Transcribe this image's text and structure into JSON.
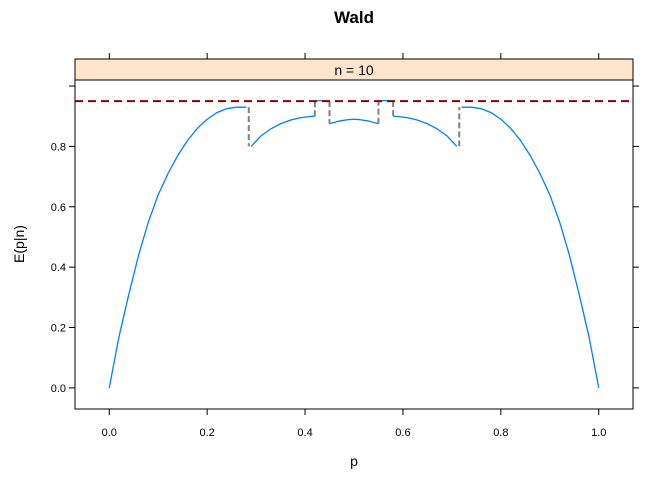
{
  "chart_data": {
    "type": "line",
    "title": "Wald",
    "xlabel": "p",
    "ylabel": "E(p|n)",
    "strip_label": "n = 10",
    "xlim": [
      -0.07,
      1.07
    ],
    "ylim": [
      -0.07,
      1.02
    ],
    "x_ticks": [
      0.0,
      0.2,
      0.4,
      0.6,
      0.8,
      1.0
    ],
    "x_tick_labels": [
      "0.0",
      "0.2",
      "0.4",
      "0.6",
      "0.8",
      "1.0"
    ],
    "y_ticks": [
      0.0,
      0.2,
      0.4,
      0.6,
      0.8
    ],
    "y_tick_labels": [
      "0.0",
      "0.2",
      "0.4",
      "0.6",
      "0.8"
    ],
    "strip_color": "#ffe5cc",
    "curve_color": "#0080ff",
    "jump_color": "#808080",
    "reference_line": {
      "y": 0.95,
      "color": "#8b0000",
      "style": "dashed"
    },
    "series": [
      {
        "segment": 1,
        "x": [
          0.0,
          0.02,
          0.04,
          0.06,
          0.08,
          0.1,
          0.12,
          0.14,
          0.16,
          0.18,
          0.2,
          0.22,
          0.24,
          0.26,
          0.28
        ],
        "y": [
          0.0,
          0.17,
          0.31,
          0.44,
          0.55,
          0.64,
          0.71,
          0.77,
          0.82,
          0.86,
          0.89,
          0.912,
          0.925,
          0.93,
          0.93
        ]
      },
      {
        "segment": 2,
        "x": [
          0.29,
          0.31,
          0.33,
          0.35,
          0.37,
          0.39,
          0.41,
          0.42
        ],
        "y": [
          0.8,
          0.835,
          0.858,
          0.875,
          0.887,
          0.895,
          0.899,
          0.9
        ]
      },
      {
        "segment": 3,
        "x": [
          0.42,
          0.435,
          0.45
        ],
        "y": [
          0.95,
          0.952,
          0.95
        ]
      },
      {
        "segment": 4,
        "x": [
          0.45,
          0.47,
          0.49,
          0.5,
          0.51,
          0.53,
          0.55
        ],
        "y": [
          0.875,
          0.884,
          0.889,
          0.89,
          0.889,
          0.884,
          0.875
        ]
      },
      {
        "segment": 5,
        "x": [
          0.55,
          0.565,
          0.58
        ],
        "y": [
          0.95,
          0.952,
          0.95
        ]
      },
      {
        "segment": 6,
        "x": [
          0.58,
          0.59,
          0.61,
          0.63,
          0.65,
          0.67,
          0.69,
          0.71
        ],
        "y": [
          0.9,
          0.899,
          0.895,
          0.887,
          0.875,
          0.858,
          0.835,
          0.8
        ]
      },
      {
        "segment": 7,
        "x": [
          0.72,
          0.74,
          0.76,
          0.78,
          0.8,
          0.82,
          0.84,
          0.86,
          0.88,
          0.9,
          0.92,
          0.94,
          0.96,
          0.98,
          1.0
        ],
        "y": [
          0.93,
          0.93,
          0.925,
          0.912,
          0.89,
          0.86,
          0.82,
          0.77,
          0.71,
          0.64,
          0.55,
          0.44,
          0.31,
          0.17,
          0.0
        ]
      }
    ],
    "jumps": [
      {
        "x": 0.285,
        "from": 0.93,
        "to": 0.8
      },
      {
        "x": 0.42,
        "from": 0.9,
        "to": 0.95
      },
      {
        "x": 0.45,
        "from": 0.95,
        "to": 0.875
      },
      {
        "x": 0.55,
        "from": 0.875,
        "to": 0.95
      },
      {
        "x": 0.58,
        "from": 0.95,
        "to": 0.9
      },
      {
        "x": 0.715,
        "from": 0.8,
        "to": 0.93
      }
    ]
  }
}
